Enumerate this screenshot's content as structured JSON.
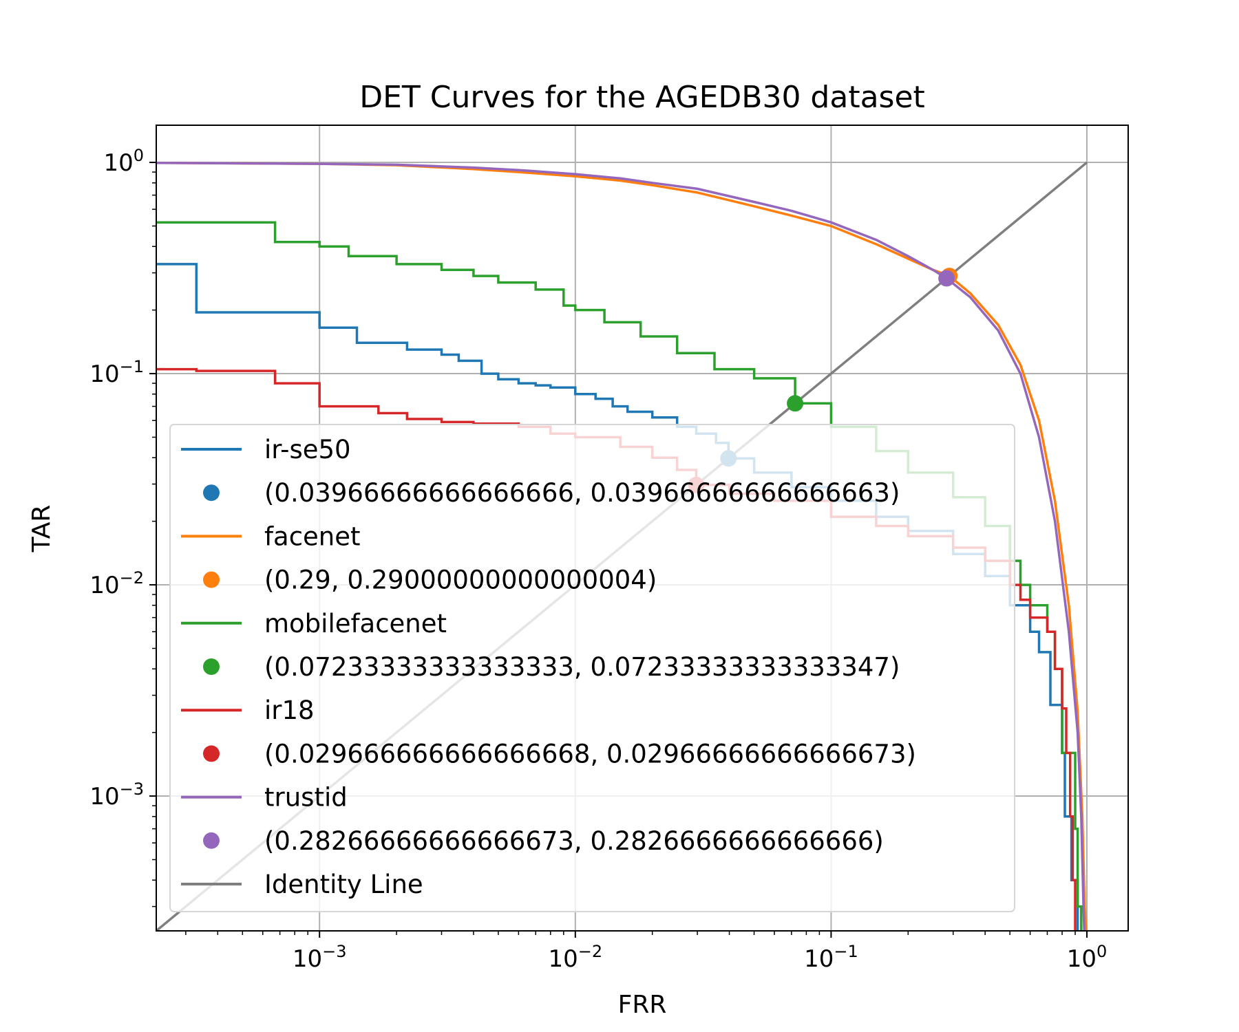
{
  "chart_data": {
    "type": "line",
    "title": "DET Curves for the AGEDB30 dataset",
    "xlabel": "FRR",
    "ylabel": "TAR",
    "xscale": "log",
    "yscale": "log",
    "xlim": [
      0.00023,
      1.45
    ],
    "ylim": [
      0.00023,
      1.5
    ],
    "grid": true,
    "legend_position": "lower-left",
    "x_ticks": [
      {
        "value": 0.001,
        "base": "10",
        "exp": "−3"
      },
      {
        "value": 0.01,
        "base": "10",
        "exp": "−2"
      },
      {
        "value": 0.1,
        "base": "10",
        "exp": "−1"
      },
      {
        "value": 1,
        "base": "10",
        "exp": "0"
      }
    ],
    "y_ticks": [
      {
        "value": 0.001,
        "base": "10",
        "exp": "−3"
      },
      {
        "value": 0.01,
        "base": "10",
        "exp": "−2"
      },
      {
        "value": 0.1,
        "base": "10",
        "exp": "−1"
      },
      {
        "value": 1,
        "base": "10",
        "exp": "0"
      }
    ],
    "series": [
      {
        "name": "ir-se50",
        "color": "#1f77b4",
        "step": true,
        "points": [
          [
            0.00023,
            0.33
          ],
          [
            0.00033,
            0.33
          ],
          [
            0.00033,
            0.195
          ],
          [
            0.001,
            0.195
          ],
          [
            0.001,
            0.165
          ],
          [
            0.0014,
            0.165
          ],
          [
            0.0014,
            0.14
          ],
          [
            0.0022,
            0.14
          ],
          [
            0.0022,
            0.13
          ],
          [
            0.003,
            0.13
          ],
          [
            0.003,
            0.123
          ],
          [
            0.0035,
            0.123
          ],
          [
            0.0035,
            0.115
          ],
          [
            0.0043,
            0.115
          ],
          [
            0.0043,
            0.1
          ],
          [
            0.0047,
            0.1
          ],
          [
            0.005,
            0.094
          ],
          [
            0.006,
            0.09
          ],
          [
            0.007,
            0.088
          ],
          [
            0.008,
            0.086
          ],
          [
            0.01,
            0.08
          ],
          [
            0.012,
            0.076
          ],
          [
            0.014,
            0.07
          ],
          [
            0.016,
            0.066
          ],
          [
            0.02,
            0.062
          ],
          [
            0.025,
            0.056
          ],
          [
            0.0297,
            0.052
          ],
          [
            0.0355,
            0.047
          ],
          [
            0.0397,
            0.0397
          ],
          [
            0.05,
            0.034
          ],
          [
            0.07,
            0.029
          ],
          [
            0.1,
            0.025
          ],
          [
            0.15,
            0.021
          ],
          [
            0.2,
            0.018
          ],
          [
            0.3,
            0.014
          ],
          [
            0.4,
            0.011
          ],
          [
            0.5,
            0.008
          ],
          [
            0.6,
            0.006
          ],
          [
            0.65,
            0.0048
          ],
          [
            0.7,
            0.0048
          ],
          [
            0.72,
            0.0027
          ],
          [
            0.78,
            0.0027
          ],
          [
            0.8,
            0.0016
          ],
          [
            0.82,
            0.0008
          ],
          [
            0.85,
            0.0008
          ],
          [
            0.87,
            0.0004
          ],
          [
            0.9,
            0.0004
          ],
          [
            0.92,
            0.0002
          ]
        ]
      },
      {
        "name": "facenet",
        "color": "#ff7f0e",
        "step": false,
        "points": [
          [
            0.00023,
            0.995
          ],
          [
            0.001,
            0.985
          ],
          [
            0.002,
            0.97
          ],
          [
            0.004,
            0.93
          ],
          [
            0.006,
            0.9
          ],
          [
            0.01,
            0.86
          ],
          [
            0.015,
            0.82
          ],
          [
            0.02,
            0.78
          ],
          [
            0.03,
            0.72
          ],
          [
            0.05,
            0.62
          ],
          [
            0.07,
            0.56
          ],
          [
            0.1,
            0.5
          ],
          [
            0.15,
            0.41
          ],
          [
            0.2,
            0.35
          ],
          [
            0.25,
            0.31
          ],
          [
            0.29,
            0.29
          ],
          [
            0.35,
            0.24
          ],
          [
            0.45,
            0.17
          ],
          [
            0.55,
            0.11
          ],
          [
            0.65,
            0.06
          ],
          [
            0.75,
            0.025
          ],
          [
            0.85,
            0.008
          ],
          [
            0.92,
            0.0025
          ],
          [
            0.96,
            0.0008
          ],
          [
            0.98,
            0.0003
          ],
          [
            1.0,
            0.0002
          ]
        ]
      },
      {
        "name": "mobilefacenet",
        "color": "#2ca02c",
        "step": true,
        "points": [
          [
            0.00023,
            0.52
          ],
          [
            0.00067,
            0.52
          ],
          [
            0.00067,
            0.42
          ],
          [
            0.001,
            0.42
          ],
          [
            0.001,
            0.4
          ],
          [
            0.0013,
            0.4
          ],
          [
            0.0013,
            0.36
          ],
          [
            0.002,
            0.33
          ],
          [
            0.003,
            0.31
          ],
          [
            0.004,
            0.29
          ],
          [
            0.005,
            0.27
          ],
          [
            0.007,
            0.25
          ],
          [
            0.009,
            0.21
          ],
          [
            0.01,
            0.2
          ],
          [
            0.013,
            0.175
          ],
          [
            0.018,
            0.15
          ],
          [
            0.025,
            0.125
          ],
          [
            0.035,
            0.105
          ],
          [
            0.05,
            0.095
          ],
          [
            0.0723,
            0.0723
          ],
          [
            0.1,
            0.056
          ],
          [
            0.15,
            0.043
          ],
          [
            0.2,
            0.034
          ],
          [
            0.3,
            0.026
          ],
          [
            0.4,
            0.019
          ],
          [
            0.5,
            0.013
          ],
          [
            0.55,
            0.01
          ],
          [
            0.6,
            0.008
          ],
          [
            0.7,
            0.006
          ],
          [
            0.75,
            0.004
          ],
          [
            0.8,
            0.0016
          ],
          [
            0.87,
            0.0016
          ],
          [
            0.9,
            0.0007
          ],
          [
            0.92,
            0.0003
          ],
          [
            0.95,
            0.0002
          ]
        ]
      },
      {
        "name": "ir18",
        "color": "#d62728",
        "step": true,
        "points": [
          [
            0.00023,
            0.105
          ],
          [
            0.00033,
            0.105
          ],
          [
            0.00033,
            0.103
          ],
          [
            0.00067,
            0.103
          ],
          [
            0.00067,
            0.09
          ],
          [
            0.001,
            0.09
          ],
          [
            0.001,
            0.07
          ],
          [
            0.0017,
            0.07
          ],
          [
            0.0017,
            0.065
          ],
          [
            0.0022,
            0.065
          ],
          [
            0.0022,
            0.061
          ],
          [
            0.003,
            0.061
          ],
          [
            0.003,
            0.059
          ],
          [
            0.004,
            0.058
          ],
          [
            0.006,
            0.056
          ],
          [
            0.008,
            0.052
          ],
          [
            0.01,
            0.05
          ],
          [
            0.015,
            0.045
          ],
          [
            0.02,
            0.04
          ],
          [
            0.025,
            0.035
          ],
          [
            0.0297,
            0.0297
          ],
          [
            0.04,
            0.027
          ],
          [
            0.06,
            0.025
          ],
          [
            0.1,
            0.021
          ],
          [
            0.15,
            0.019
          ],
          [
            0.2,
            0.017
          ],
          [
            0.3,
            0.015
          ],
          [
            0.4,
            0.013
          ],
          [
            0.5,
            0.01
          ],
          [
            0.55,
            0.0085
          ],
          [
            0.6,
            0.007
          ],
          [
            0.7,
            0.006
          ],
          [
            0.75,
            0.004
          ],
          [
            0.8,
            0.0026
          ],
          [
            0.83,
            0.0016
          ],
          [
            0.86,
            0.0008
          ],
          [
            0.88,
            0.0004
          ],
          [
            0.9,
            0.0002
          ]
        ]
      },
      {
        "name": "trustid",
        "color": "#9467bd",
        "step": false,
        "points": [
          [
            0.00023,
            0.995
          ],
          [
            0.001,
            0.985
          ],
          [
            0.002,
            0.975
          ],
          [
            0.004,
            0.945
          ],
          [
            0.006,
            0.92
          ],
          [
            0.01,
            0.88
          ],
          [
            0.015,
            0.84
          ],
          [
            0.02,
            0.8
          ],
          [
            0.03,
            0.75
          ],
          [
            0.05,
            0.65
          ],
          [
            0.07,
            0.59
          ],
          [
            0.1,
            0.52
          ],
          [
            0.15,
            0.43
          ],
          [
            0.2,
            0.36
          ],
          [
            0.25,
            0.31
          ],
          [
            0.2827,
            0.2827
          ],
          [
            0.35,
            0.23
          ],
          [
            0.45,
            0.16
          ],
          [
            0.55,
            0.1
          ],
          [
            0.65,
            0.05
          ],
          [
            0.75,
            0.02
          ],
          [
            0.85,
            0.006
          ],
          [
            0.92,
            0.002
          ],
          [
            0.95,
            0.0008
          ],
          [
            0.97,
            0.0003
          ],
          [
            0.98,
            0.0002
          ]
        ]
      }
    ],
    "markers": [
      {
        "label": "(0.03966666666666666, 0.03966666666666663)",
        "color": "#1f77b4",
        "x": 0.0397,
        "y": 0.0397
      },
      {
        "label": "(0.29, 0.29000000000000004)",
        "color": "#ff7f0e",
        "x": 0.29,
        "y": 0.29
      },
      {
        "label": "(0.07233333333333333, 0.07233333333333347)",
        "color": "#2ca02c",
        "x": 0.0723,
        "y": 0.0723
      },
      {
        "label": "(0.029666666666666668, 0.02966666666666673)",
        "color": "#d62728",
        "x": 0.0297,
        "y": 0.0297
      },
      {
        "label": "(0.28266666666666673, 0.2826666666666666)",
        "color": "#9467bd",
        "x": 0.2827,
        "y": 0.2827
      }
    ],
    "identity_line": {
      "label": "Identity Line",
      "color": "#7f7f7f"
    },
    "legend_entries": [
      {
        "kind": "line",
        "label": "ir-se50",
        "color": "#1f77b4"
      },
      {
        "kind": "dot",
        "label": "(0.03966666666666666, 0.03966666666666663)",
        "color": "#1f77b4"
      },
      {
        "kind": "line",
        "label": "facenet",
        "color": "#ff7f0e"
      },
      {
        "kind": "dot",
        "label": "(0.29, 0.29000000000000004)",
        "color": "#ff7f0e"
      },
      {
        "kind": "line",
        "label": "mobilefacenet",
        "color": "#2ca02c"
      },
      {
        "kind": "dot",
        "label": "(0.07233333333333333, 0.07233333333333347)",
        "color": "#2ca02c"
      },
      {
        "kind": "line",
        "label": "ir18",
        "color": "#d62728"
      },
      {
        "kind": "dot",
        "label": "(0.029666666666666668, 0.02966666666666673)",
        "color": "#d62728"
      },
      {
        "kind": "line",
        "label": "trustid",
        "color": "#9467bd"
      },
      {
        "kind": "dot",
        "label": "(0.28266666666666673, 0.2826666666666666)",
        "color": "#9467bd"
      },
      {
        "kind": "line",
        "label": "Identity Line",
        "color": "#7f7f7f"
      }
    ]
  }
}
